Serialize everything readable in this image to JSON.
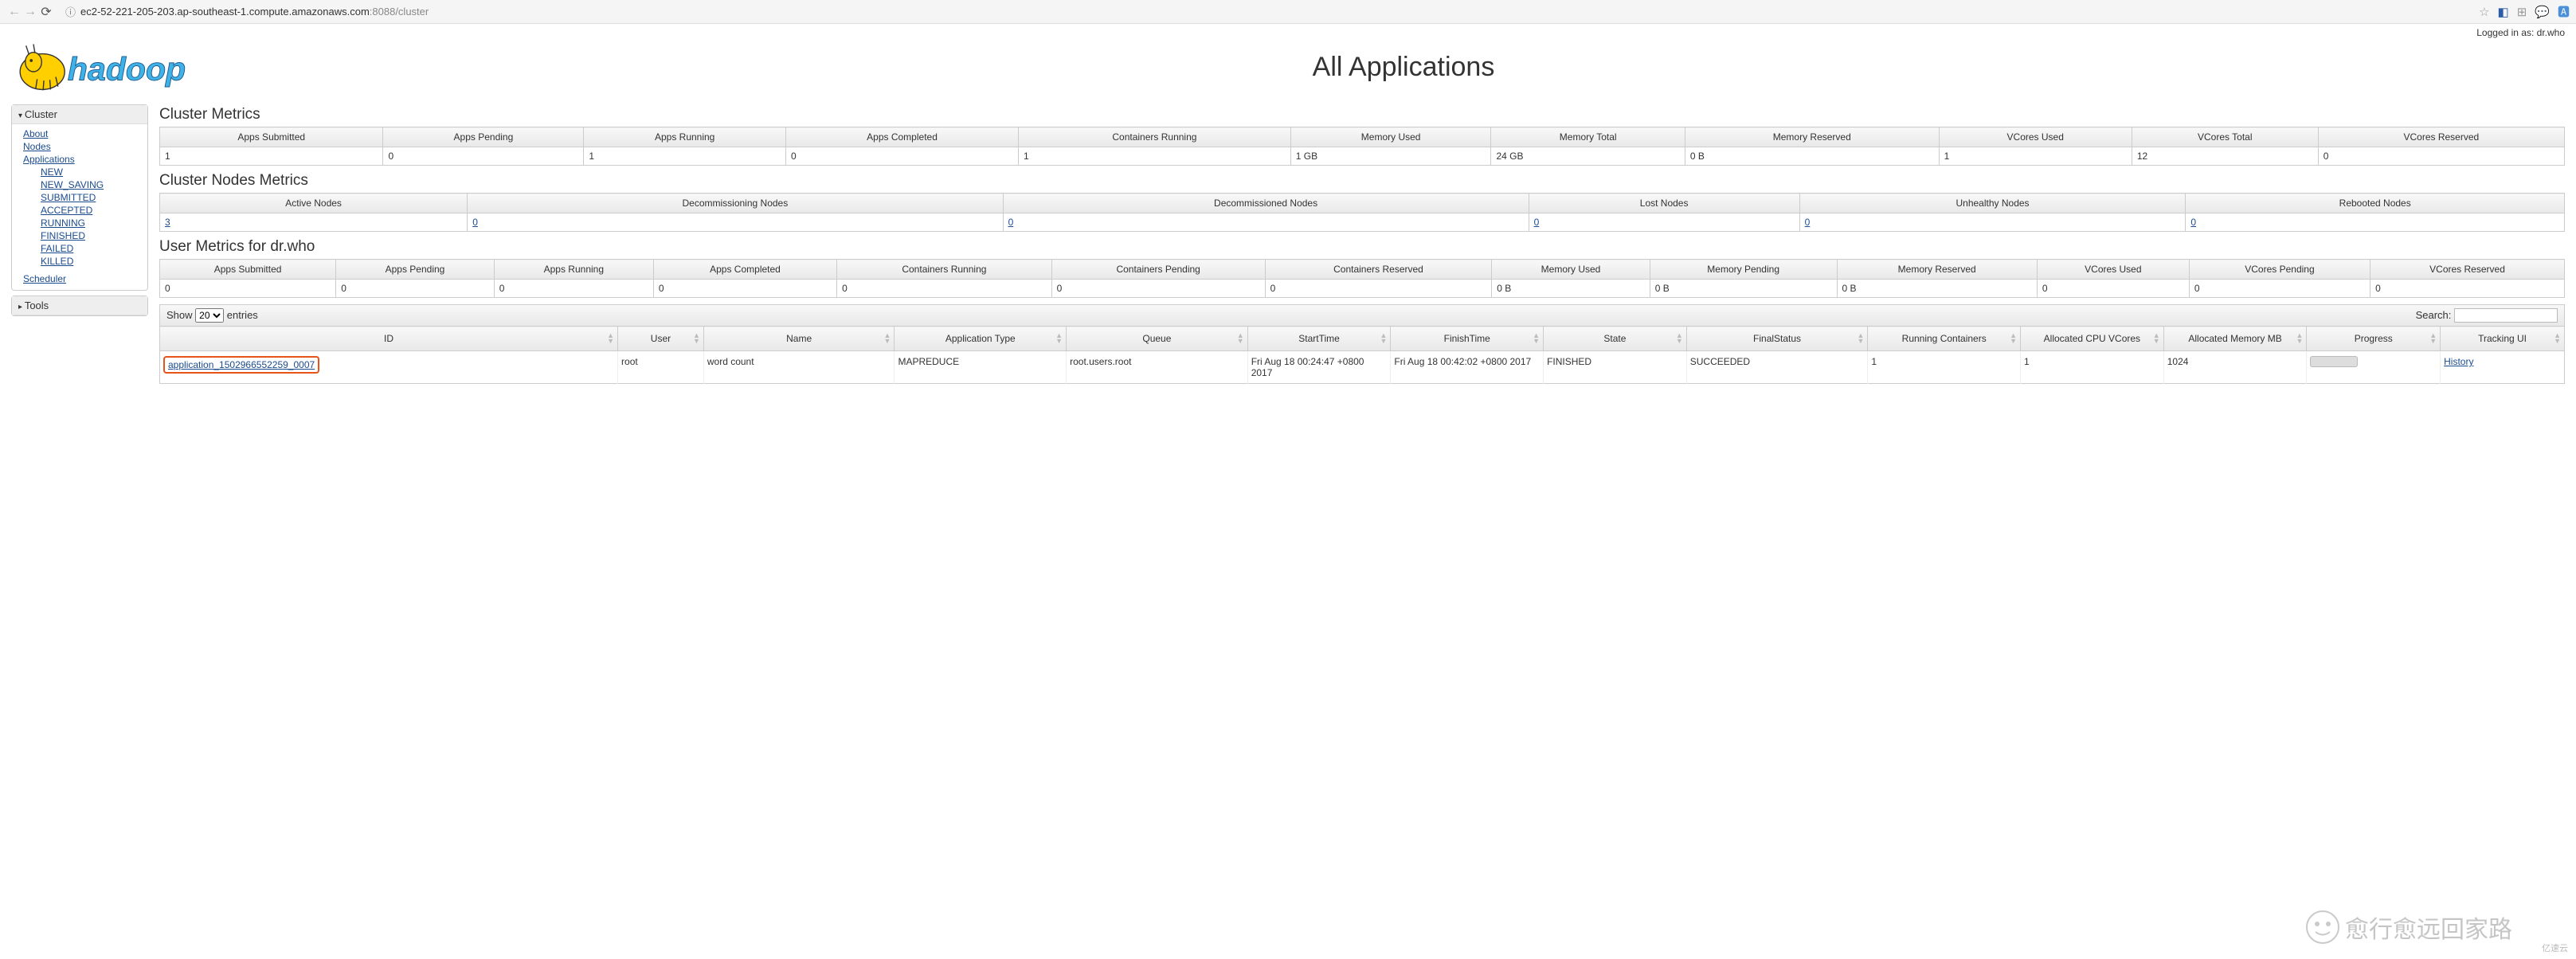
{
  "browser": {
    "url_host": "ec2-52-221-205-203.ap-southeast-1.compute.amazonaws.com",
    "url_port_path": ":8088/cluster"
  },
  "login_text": "Logged in as: dr.who",
  "page_title": "All Applications",
  "sidebar": {
    "cluster_label": "Cluster",
    "tools_label": "Tools",
    "links": {
      "about": "About",
      "nodes": "Nodes",
      "applications": "Applications",
      "new": "NEW",
      "new_saving": "NEW_SAVING",
      "submitted": "SUBMITTED",
      "accepted": "ACCEPTED",
      "running": "RUNNING",
      "finished": "FINISHED",
      "failed": "FAILED",
      "killed": "KILLED",
      "scheduler": "Scheduler"
    }
  },
  "sections": {
    "cluster_metrics": "Cluster Metrics",
    "cluster_nodes_metrics": "Cluster Nodes Metrics",
    "user_metrics": "User Metrics for dr.who"
  },
  "cluster_metrics": {
    "headers": [
      "Apps Submitted",
      "Apps Pending",
      "Apps Running",
      "Apps Completed",
      "Containers Running",
      "Memory Used",
      "Memory Total",
      "Memory Reserved",
      "VCores Used",
      "VCores Total",
      "VCores Reserved"
    ],
    "values": [
      "1",
      "0",
      "1",
      "0",
      "1",
      "1 GB",
      "24 GB",
      "0 B",
      "1",
      "12",
      "0"
    ]
  },
  "nodes_metrics": {
    "headers": [
      "Active Nodes",
      "Decommissioning Nodes",
      "Decommissioned Nodes",
      "Lost Nodes",
      "Unhealthy Nodes",
      "Rebooted Nodes"
    ],
    "values": [
      "3",
      "0",
      "0",
      "0",
      "0",
      "0"
    ]
  },
  "user_metrics": {
    "headers": [
      "Apps Submitted",
      "Apps Pending",
      "Apps Running",
      "Apps Completed",
      "Containers Running",
      "Containers Pending",
      "Containers Reserved",
      "Memory Used",
      "Memory Pending",
      "Memory Reserved",
      "VCores Used",
      "VCores Pending",
      "VCores Reserved"
    ],
    "values": [
      "0",
      "0",
      "0",
      "0",
      "0",
      "0",
      "0",
      "0 B",
      "0 B",
      "0 B",
      "0",
      "0",
      "0"
    ]
  },
  "datatable": {
    "show_label": "Show",
    "entries_label": "entries",
    "show_value": "20",
    "search_label": "Search:",
    "columns": [
      "ID",
      "User",
      "Name",
      "Application Type",
      "Queue",
      "StartTime",
      "FinishTime",
      "State",
      "FinalStatus",
      "Running Containers",
      "Allocated CPU VCores",
      "Allocated Memory MB",
      "Progress",
      "Tracking UI"
    ],
    "col_widths": [
      "240",
      "45",
      "100",
      "90",
      "95",
      "75",
      "80",
      "75",
      "95",
      "80",
      "75",
      "75",
      "70",
      "65"
    ],
    "row": {
      "id": "application_1502966552259_0007",
      "user": "root",
      "name": "word count",
      "type": "MAPREDUCE",
      "queue": "root.users.root",
      "start": "Fri Aug 18 00:24:47 +0800 2017",
      "finish": "Fri Aug 18 00:42:02 +0800 2017",
      "state": "FINISHED",
      "final": "SUCCEEDED",
      "running": "1",
      "vcores": "1",
      "memory": "1024",
      "tracking": "History"
    }
  },
  "watermark": "愈行愈远回家路",
  "watermark_small": "亿速云"
}
